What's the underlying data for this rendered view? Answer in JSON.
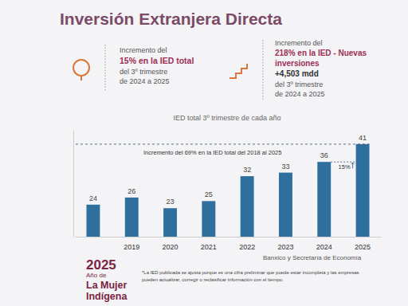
{
  "chart_data": {
    "type": "bar",
    "title": "IED total 3º trimestre de cada año",
    "categories": [
      null,
      "2019",
      "2020",
      "2021",
      "2022",
      "2023",
      "2024",
      "2025"
    ],
    "values": [
      24,
      26,
      23,
      25,
      32,
      33,
      36,
      41
    ],
    "color": "#2f6f9d",
    "ylim": [
      15,
      45
    ],
    "yticks": [],
    "grid": false,
    "data_labels": true,
    "tick_labels": "x",
    "annotations": [
      "Incremento del 69% en la IED total del 2018 al 2025",
      "15%"
    ],
    "source": "Banxico y Secretaría de Economía",
    "footnote": [
      "*La IED publicada se ajusta porque es una cifra preliminar que puede estar incompleta y las empresas",
      "pueden actualizar, corregir o reclasificar información con el tiempo."
    ]
  },
  "slide": {
    "title": "Inversión Extranjera Directa",
    "cards": [
      [
        "Incremento del",
        "15% en la IED total",
        "del 3º trimestre",
        "de 2024 a 2025"
      ],
      [
        "Incremento del",
        "218% en la IED - Nuevas",
        "inversiones",
        "+4,503 mdd",
        "del 3º trimestre",
        "de 2024 a 2025"
      ]
    ],
    "logo": [
      "2025",
      "Año de",
      "La Mujer",
      "Indígena"
    ]
  }
}
